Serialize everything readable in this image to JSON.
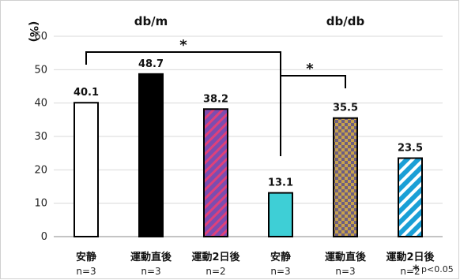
{
  "chart_data": {
    "type": "bar",
    "ylabel": "(%)",
    "ylim": [
      0,
      60
    ],
    "yticks": [
      0,
      10,
      20,
      30,
      40,
      50,
      60
    ],
    "grid": true,
    "groups": [
      {
        "label": "db/m",
        "bars": [
          0,
          1,
          2
        ]
      },
      {
        "label": "db/db",
        "bars": [
          3,
          4,
          5
        ]
      }
    ],
    "categories": [
      "安静",
      "運動直後",
      "運動2日後",
      "安静",
      "運動直後",
      "運動2日後"
    ],
    "n_labels": [
      "n=3",
      "n=3",
      "n=2",
      "n=3",
      "n=3",
      "n=2"
    ],
    "values": [
      40.1,
      48.7,
      38.2,
      13.1,
      35.5,
      23.5
    ],
    "value_labels": [
      "40.1",
      "48.7",
      "38.2",
      "13.1",
      "35.5",
      "23.5"
    ],
    "bar_styles": [
      {
        "fill": "#ffffff",
        "pattern": "none"
      },
      {
        "fill": "#000000",
        "pattern": "none"
      },
      {
        "fill": "#7b4db0",
        "pattern": "diagonal",
        "stripe": "#e0407a"
      },
      {
        "fill": "#3ecfd6",
        "pattern": "none"
      },
      {
        "fill": "#6b5e85",
        "pattern": "checker",
        "stripe": "#c8a24a"
      },
      {
        "fill": "#1a9fd6",
        "pattern": "diagonal-wide",
        "stripe": "#ffffff"
      }
    ],
    "significance": [
      {
        "from": 0,
        "to": 3,
        "label": "*"
      },
      {
        "from": 3,
        "to": 4,
        "label": "*"
      }
    ],
    "note_star": "*",
    "note": "p<0.05"
  }
}
